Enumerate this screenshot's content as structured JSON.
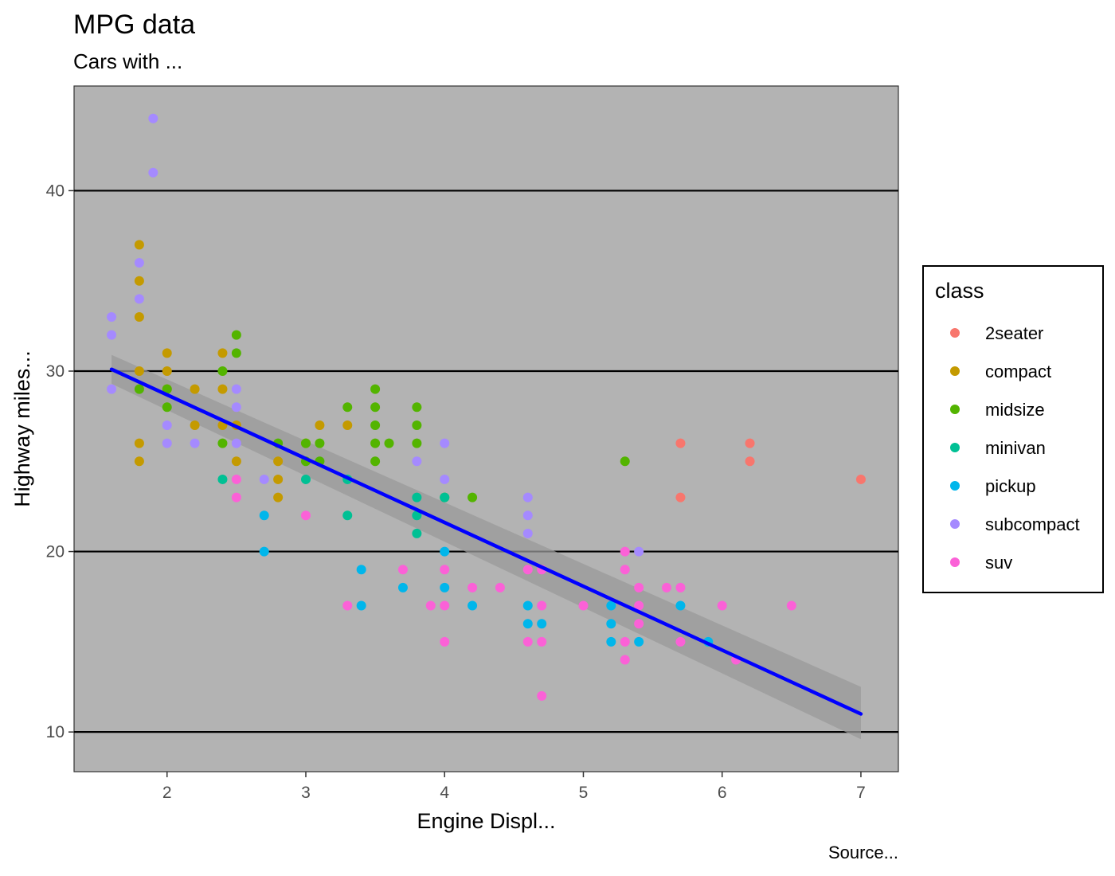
{
  "chart_data": {
    "type": "scatter",
    "title": "MPG data",
    "subtitle": "Cars with ...",
    "xlabel": "Engine Displ...",
    "ylabel": "Highway miles...",
    "caption": "Source...",
    "xlim": [
      1.33,
      7.27
    ],
    "ylim": [
      7.8,
      45.8
    ],
    "x_ticks": [
      2,
      3,
      4,
      5,
      6,
      7
    ],
    "y_ticks": [
      10,
      20,
      30,
      40
    ],
    "grid": "horizontal major lines only",
    "panel_background": "#b3b3b3",
    "legend": {
      "title": "class",
      "position": "right",
      "entries": [
        {
          "label": "2seater",
          "color": "#f8766d"
        },
        {
          "label": "compact",
          "color": "#c49a00"
        },
        {
          "label": "midsize",
          "color": "#53b400"
        },
        {
          "label": "minivan",
          "color": "#00c094"
        },
        {
          "label": "pickup",
          "color": "#00b6eb"
        },
        {
          "label": "subcompact",
          "color": "#a58aff"
        },
        {
          "label": "suv",
          "color": "#fb61d7"
        }
      ]
    },
    "series": [
      {
        "name": "2seater",
        "color": "#f8766d",
        "points": [
          [
            5.7,
            26
          ],
          [
            5.7,
            23
          ],
          [
            6.2,
            26
          ],
          [
            6.2,
            25
          ],
          [
            7.0,
            24
          ]
        ]
      },
      {
        "name": "compact",
        "color": "#c49a00",
        "points": [
          [
            1.8,
            37
          ],
          [
            1.8,
            35
          ],
          [
            1.8,
            33
          ],
          [
            1.8,
            30
          ],
          [
            1.8,
            26
          ],
          [
            1.8,
            25
          ],
          [
            2.0,
            31
          ],
          [
            2.0,
            30
          ],
          [
            2.0,
            29
          ],
          [
            2.2,
            29
          ],
          [
            2.2,
            27
          ],
          [
            2.4,
            31
          ],
          [
            2.4,
            29
          ],
          [
            2.4,
            27
          ],
          [
            2.5,
            27
          ],
          [
            2.5,
            25
          ],
          [
            2.8,
            25
          ],
          [
            2.8,
            24
          ],
          [
            2.8,
            23
          ],
          [
            3.0,
            26
          ],
          [
            3.1,
            27
          ],
          [
            3.3,
            27
          ]
        ]
      },
      {
        "name": "midsize",
        "color": "#53b400",
        "points": [
          [
            1.8,
            29
          ],
          [
            2.0,
            29
          ],
          [
            2.0,
            28
          ],
          [
            2.4,
            30
          ],
          [
            2.4,
            26
          ],
          [
            2.5,
            32
          ],
          [
            2.5,
            31
          ],
          [
            2.8,
            26
          ],
          [
            3.0,
            26
          ],
          [
            3.0,
            25
          ],
          [
            3.1,
            26
          ],
          [
            3.1,
            25
          ],
          [
            3.3,
            28
          ],
          [
            3.5,
            29
          ],
          [
            3.5,
            28
          ],
          [
            3.5,
            27
          ],
          [
            3.5,
            26
          ],
          [
            3.5,
            25
          ],
          [
            3.6,
            26
          ],
          [
            3.8,
            28
          ],
          [
            3.8,
            27
          ],
          [
            3.8,
            26
          ],
          [
            4.0,
            23
          ],
          [
            4.2,
            23
          ],
          [
            5.3,
            25
          ]
        ]
      },
      {
        "name": "minivan",
        "color": "#00c094",
        "points": [
          [
            2.4,
            24
          ],
          [
            3.0,
            24
          ],
          [
            3.3,
            24
          ],
          [
            3.3,
            22
          ],
          [
            3.8,
            23
          ],
          [
            3.8,
            22
          ],
          [
            3.8,
            21
          ],
          [
            4.0,
            23
          ]
        ]
      },
      {
        "name": "pickup",
        "color": "#00b6eb",
        "points": [
          [
            2.7,
            22
          ],
          [
            2.7,
            20
          ],
          [
            3.4,
            19
          ],
          [
            3.4,
            17
          ],
          [
            3.7,
            18
          ],
          [
            4.0,
            20
          ],
          [
            4.0,
            18
          ],
          [
            4.2,
            17
          ],
          [
            4.6,
            17
          ],
          [
            4.6,
            16
          ],
          [
            4.7,
            16
          ],
          [
            5.2,
            17
          ],
          [
            5.2,
            16
          ],
          [
            5.2,
            15
          ],
          [
            5.4,
            15
          ],
          [
            5.7,
            17
          ],
          [
            5.9,
            15
          ]
        ]
      },
      {
        "name": "subcompact",
        "color": "#a58aff",
        "points": [
          [
            1.6,
            33
          ],
          [
            1.6,
            32
          ],
          [
            1.6,
            29
          ],
          [
            1.8,
            36
          ],
          [
            1.8,
            34
          ],
          [
            1.9,
            44
          ],
          [
            1.9,
            41
          ],
          [
            2.0,
            27
          ],
          [
            2.0,
            26
          ],
          [
            2.2,
            26
          ],
          [
            2.5,
            29
          ],
          [
            2.5,
            28
          ],
          [
            2.5,
            26
          ],
          [
            2.7,
            24
          ],
          [
            3.8,
            25
          ],
          [
            4.0,
            26
          ],
          [
            4.0,
            24
          ],
          [
            4.6,
            23
          ],
          [
            4.6,
            22
          ],
          [
            4.6,
            21
          ],
          [
            5.4,
            20
          ]
        ]
      },
      {
        "name": "suv",
        "color": "#fb61d7",
        "points": [
          [
            2.5,
            24
          ],
          [
            2.5,
            23
          ],
          [
            3.0,
            22
          ],
          [
            3.3,
            17
          ],
          [
            3.7,
            19
          ],
          [
            3.9,
            17
          ],
          [
            4.0,
            19
          ],
          [
            4.0,
            17
          ],
          [
            4.0,
            15
          ],
          [
            4.2,
            18
          ],
          [
            4.4,
            18
          ],
          [
            4.6,
            19
          ],
          [
            4.6,
            15
          ],
          [
            4.7,
            19
          ],
          [
            4.7,
            17
          ],
          [
            4.7,
            15
          ],
          [
            4.7,
            12
          ],
          [
            5.0,
            17
          ],
          [
            5.3,
            20
          ],
          [
            5.3,
            19
          ],
          [
            5.3,
            15
          ],
          [
            5.3,
            14
          ],
          [
            5.4,
            18
          ],
          [
            5.4,
            17
          ],
          [
            5.4,
            16
          ],
          [
            5.6,
            18
          ],
          [
            5.7,
            18
          ],
          [
            5.7,
            15
          ],
          [
            6.0,
            17
          ],
          [
            6.1,
            14
          ],
          [
            6.5,
            17
          ]
        ]
      }
    ],
    "smooth": {
      "method": "lm",
      "color": "#0000ff",
      "band_color": "#9a9a9a",
      "x": [
        1.6,
        7.0
      ],
      "y": [
        30.1,
        11.0
      ],
      "lower": [
        29.3,
        9.6
      ],
      "upper": [
        30.9,
        12.5
      ]
    }
  }
}
